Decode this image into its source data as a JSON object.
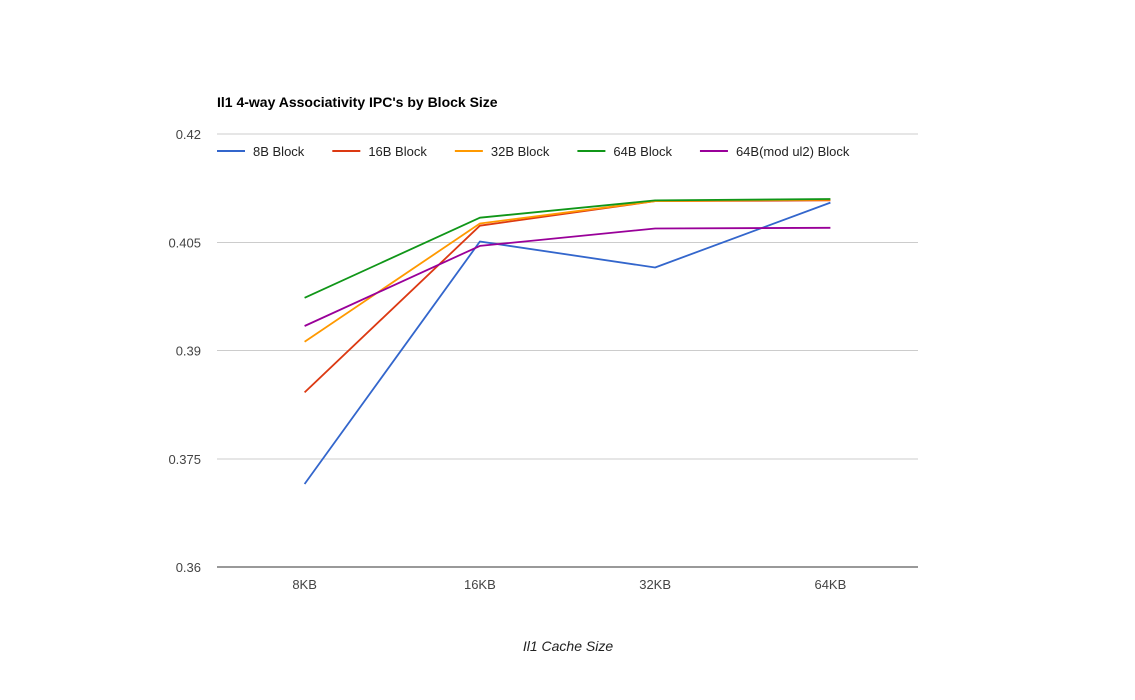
{
  "chart_data": {
    "type": "line",
    "title": "Il1 4-way Associativity IPC's by Block Size",
    "xlabel": "Il1 Cache Size",
    "ylabel": "",
    "categories": [
      "8KB",
      "16KB",
      "32KB",
      "64KB"
    ],
    "ylim": [
      0.36,
      0.42
    ],
    "yticks": [
      "0.36",
      "0.375",
      "0.39",
      "0.405",
      "0.42"
    ],
    "grid": true,
    "legend_position": "top",
    "series": [
      {
        "name": "8B Block",
        "color": "#3366cc",
        "values": [
          0.3715,
          0.4051,
          0.4015,
          0.4105
        ]
      },
      {
        "name": "16B Block",
        "color": "#dc3912",
        "values": [
          0.3842,
          0.4073,
          0.4107,
          0.4108
        ]
      },
      {
        "name": "32B Block",
        "color": "#ff9900",
        "values": [
          0.3912,
          0.4076,
          0.4107,
          0.4109
        ]
      },
      {
        "name": "64B Block",
        "color": "#109618",
        "values": [
          0.3973,
          0.4084,
          0.4108,
          0.411
        ]
      },
      {
        "name": "64B(mod ul2) Block",
        "color": "#990099",
        "values": [
          0.3934,
          0.4045,
          0.4069,
          0.407
        ]
      }
    ]
  }
}
